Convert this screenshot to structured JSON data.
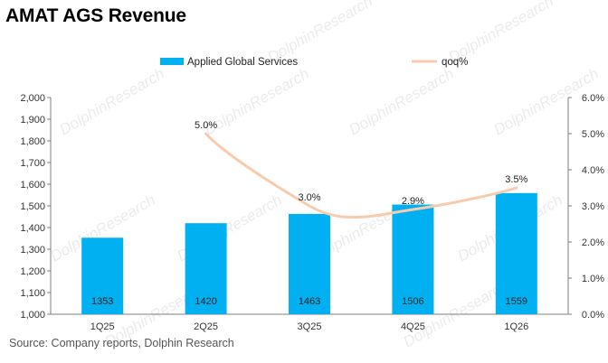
{
  "title": "AMAT AGS Revenue",
  "source": "Source: Company reports, Dolphin Research",
  "watermark": "DolphinResearch",
  "colors": {
    "bar": "#00b0f0",
    "line": "#f8cbad",
    "axis": "#7f7f7f"
  },
  "chart_data": {
    "type": "bar",
    "categories": [
      "1Q25",
      "2Q25",
      "3Q25",
      "4Q25",
      "1Q26"
    ],
    "series": [
      {
        "name": "Applied Global Services",
        "type": "bar",
        "axis": "left",
        "values": [
          1353,
          1420,
          1463,
          1506,
          1559
        ],
        "labels": [
          "1353",
          "1420",
          "1463",
          "1506",
          "1559"
        ]
      },
      {
        "name": "qoq%",
        "type": "line",
        "axis": "right",
        "smooth": true,
        "values": [
          null,
          5.0,
          3.0,
          2.9,
          3.5
        ],
        "labels": [
          null,
          "5.0%",
          "3.0%",
          "2.9%",
          "3.5%"
        ]
      }
    ],
    "y_left": {
      "min": 1000,
      "max": 2000,
      "step": 100,
      "ticks": [
        "1,000",
        "1,100",
        "1,200",
        "1,300",
        "1,400",
        "1,500",
        "1,600",
        "1,700",
        "1,800",
        "1,900",
        "2,000"
      ]
    },
    "y_right": {
      "min": 0,
      "max": 6,
      "step": 1,
      "ticks": [
        "0.0%",
        "1.0%",
        "2.0%",
        "3.0%",
        "4.0%",
        "5.0%",
        "6.0%"
      ]
    },
    "legend": {
      "position": "top",
      "entries": [
        "Applied Global Services",
        "qoq%"
      ]
    },
    "grid": false
  }
}
